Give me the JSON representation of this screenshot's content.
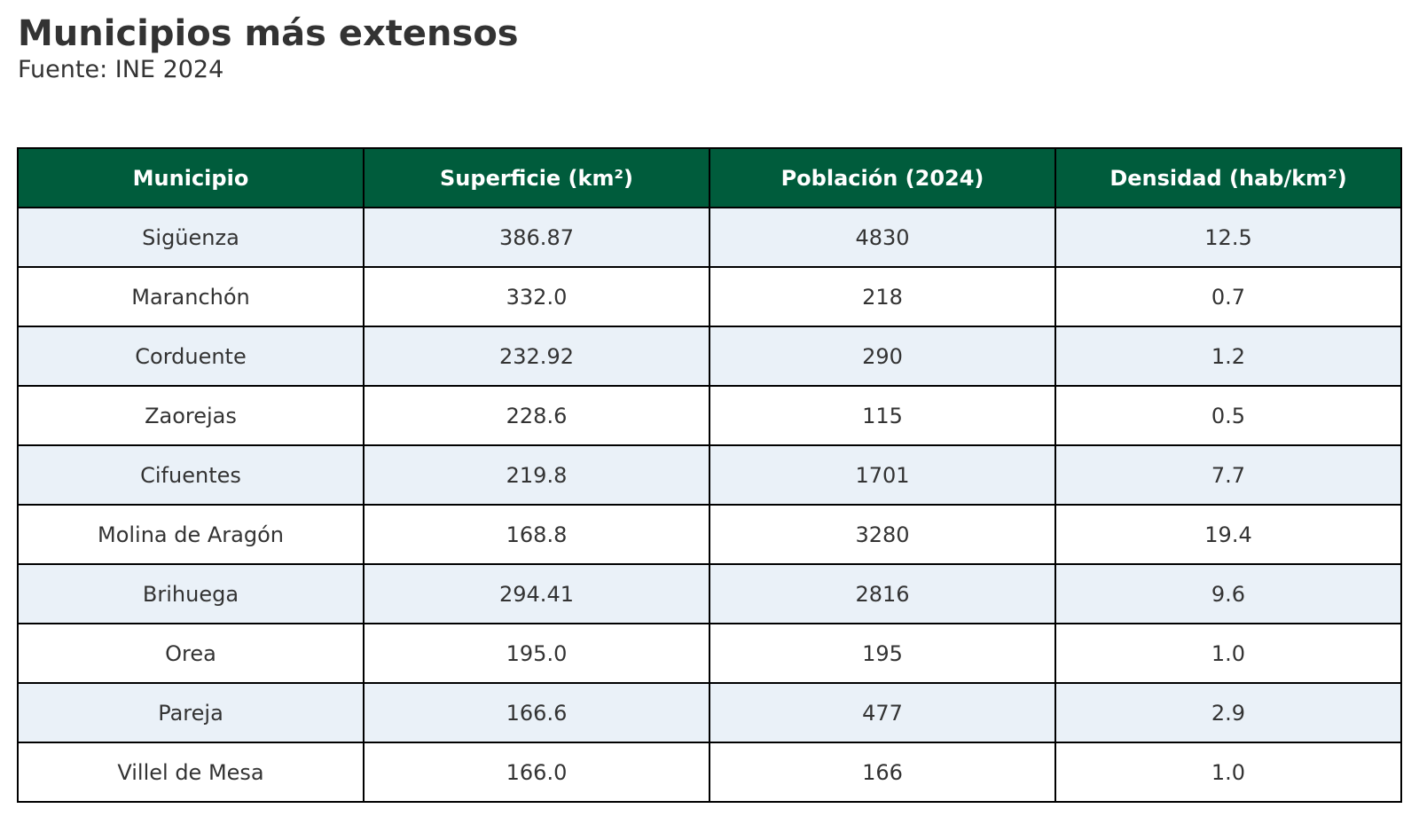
{
  "title": "Municipios más extensos",
  "subtitle": "Fuente: INE 2024",
  "colors": {
    "header_background": "#005c3c",
    "header_text": "#ffffff",
    "stripe_row": "#eaf1f8",
    "plain_row": "#ffffff",
    "body_text": "#333333",
    "grid_lines": "#000000"
  },
  "chart_data": {
    "type": "table",
    "title": "Municipios más extensos",
    "subtitle": "Fuente: INE 2024",
    "columns": [
      "Municipio",
      "Superficie (km²)",
      "Población (2024)",
      "Densidad (hab/km²)"
    ],
    "rows": [
      [
        "Sigüenza",
        "386.87",
        "4830",
        "12.5"
      ],
      [
        "Maranchón",
        "332.0",
        "218",
        "0.7"
      ],
      [
        "Corduente",
        "232.92",
        "290",
        "1.2"
      ],
      [
        "Zaorejas",
        "228.6",
        "115",
        "0.5"
      ],
      [
        "Cifuentes",
        "219.8",
        "1701",
        "7.7"
      ],
      [
        "Molina de Aragón",
        "168.8",
        "3280",
        "19.4"
      ],
      [
        "Brihuega",
        "294.41",
        "2816",
        "9.6"
      ],
      [
        "Orea",
        "195.0",
        "195",
        "1.0"
      ],
      [
        "Pareja",
        "166.6",
        "477",
        "2.9"
      ],
      [
        "Villel de Mesa",
        "166.0",
        "166",
        "1.0"
      ]
    ]
  }
}
